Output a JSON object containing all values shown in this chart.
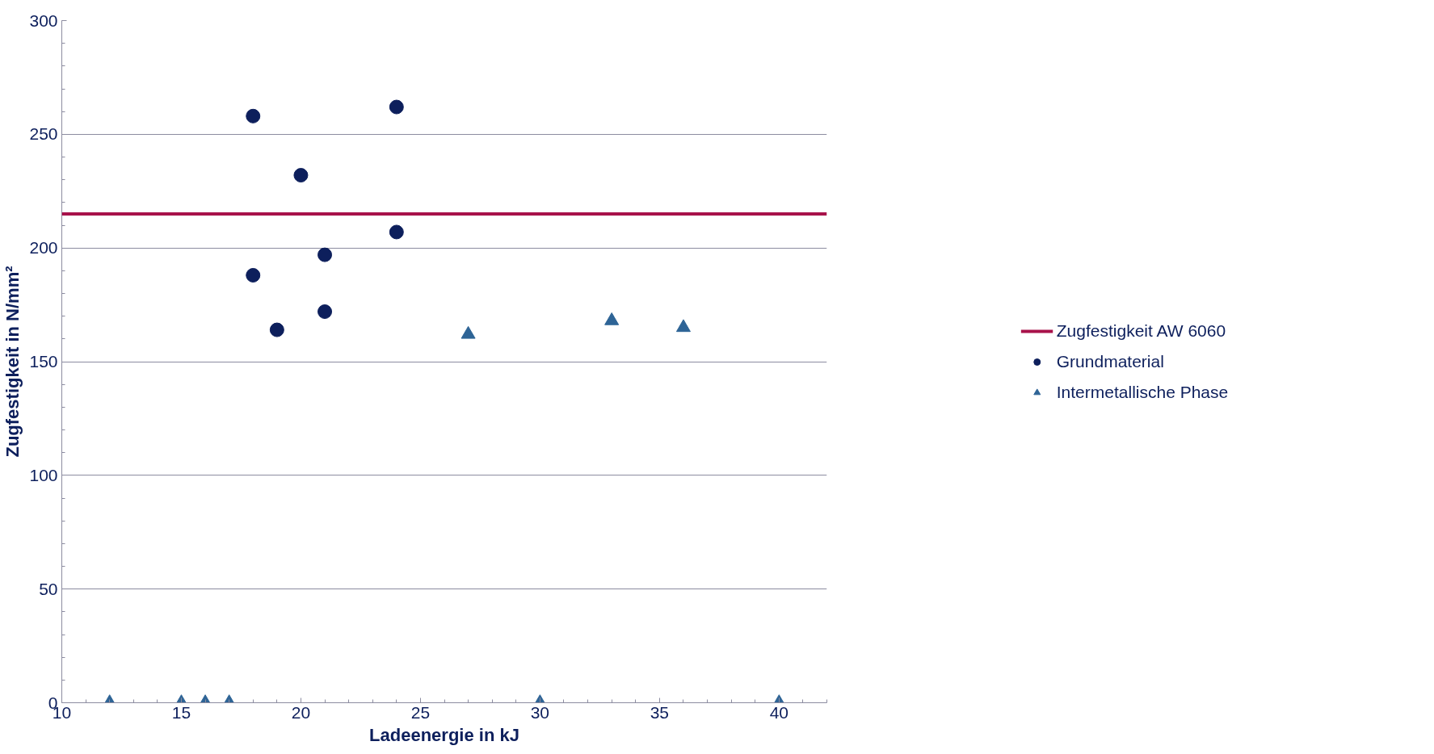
{
  "chart_data": {
    "type": "scatter",
    "xlabel": "Ladeenergie in kJ",
    "ylabel": "Zugfestigkeit in N/mm²",
    "xlim": [
      10,
      42
    ],
    "xticks": [
      10,
      15,
      20,
      25,
      30,
      35,
      40
    ],
    "ylim": [
      0,
      300
    ],
    "yticks": [
      0,
      50,
      100,
      150,
      200,
      250,
      300
    ],
    "grid": "y",
    "legend": "right",
    "ref_lines": [
      {
        "axis": "y",
        "value": 215,
        "label": "Zugfestigkeit AW 6060",
        "color": "#a8124a",
        "line_style": "solid"
      }
    ],
    "series": [
      {
        "name": "Grundmaterial",
        "color": "#0d1f5c",
        "marker": "circle",
        "x": [
          18,
          18,
          19,
          20,
          21,
          21,
          24,
          24
        ],
        "values": [
          258,
          188,
          164,
          232,
          197,
          172,
          262,
          207
        ]
      },
      {
        "name": "Intermetallische Phase",
        "color": "#2e6496",
        "marker": "triangle",
        "x": [
          12,
          15,
          16,
          17,
          27,
          30,
          33,
          36,
          40
        ],
        "values": [
          0,
          0,
          0,
          0,
          162,
          0,
          168,
          165,
          0
        ]
      }
    ]
  }
}
